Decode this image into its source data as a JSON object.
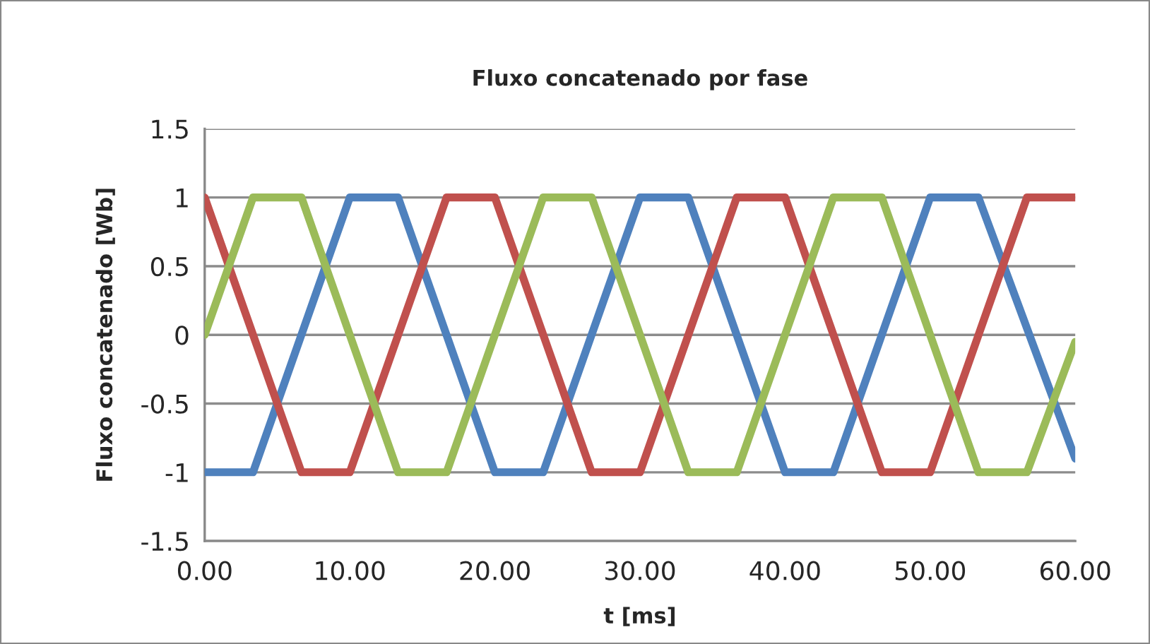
{
  "chart_data": {
    "type": "line",
    "title": "Fluxo concatenado por fase",
    "xlabel": "t [ms]",
    "ylabel": "Fluxo concatenado [Wb]",
    "series": [
      {
        "color": "#4f81bd",
        "x": [
          0,
          3.33,
          10,
          13.33,
          20,
          23.33,
          30,
          33.33,
          40,
          43.33,
          50,
          53.33,
          60
        ],
        "values": [
          -1,
          -1,
          1,
          1,
          -1,
          -1,
          1,
          1,
          -1,
          -1,
          1,
          1,
          -0.9
        ]
      },
      {
        "color": "#c0504d",
        "x": [
          0,
          6.67,
          10,
          16.67,
          20,
          26.67,
          30,
          36.67,
          40,
          46.67,
          50,
          56.67,
          60
        ],
        "values": [
          1,
          -1,
          -1,
          1,
          1,
          -1,
          -1,
          1,
          1,
          -1,
          -1,
          1,
          1
        ]
      },
      {
        "color": "#9bbb59",
        "x": [
          0,
          3.33,
          6.67,
          13.33,
          16.67,
          23.33,
          26.67,
          33.33,
          36.67,
          43.33,
          46.67,
          53.33,
          56.67,
          60
        ],
        "values": [
          0,
          1,
          1,
          -1,
          -1,
          1,
          1,
          -1,
          -1,
          1,
          1,
          -1,
          -1,
          -0.05
        ]
      }
    ],
    "xlim": [
      0,
      60
    ],
    "ylim": [
      -1.5,
      1.5
    ],
    "xticks": [
      {
        "value": 0,
        "label": "0.00"
      },
      {
        "value": 10,
        "label": "10.00"
      },
      {
        "value": 20,
        "label": "20.00"
      },
      {
        "value": 30,
        "label": "30.00"
      },
      {
        "value": 40,
        "label": "40.00"
      },
      {
        "value": 50,
        "label": "50.00"
      },
      {
        "value": 60,
        "label": "60.00"
      }
    ],
    "yticks": [
      -1.5,
      -1,
      -0.5,
      0,
      0.5,
      1,
      1.5
    ],
    "grid": "y",
    "marker": "none",
    "line_style": "solid"
  }
}
